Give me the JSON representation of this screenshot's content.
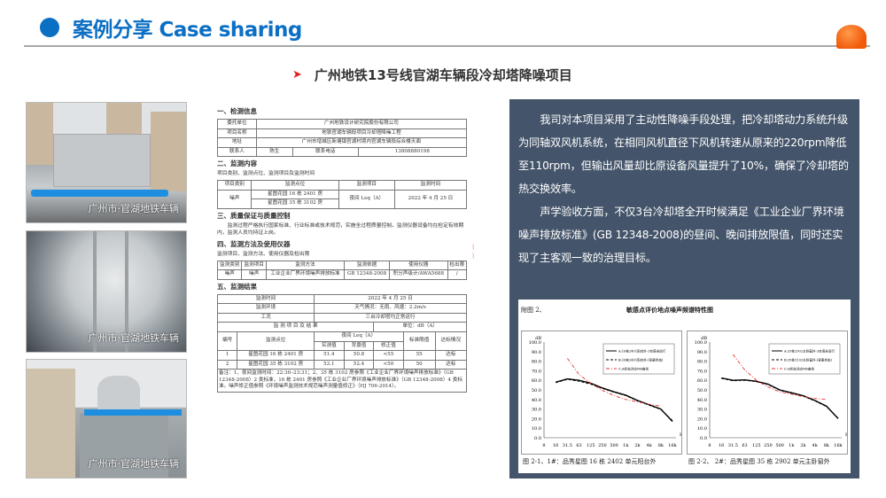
{
  "header": {
    "title": "案例分享 Case sharing",
    "subtitle": "广州地铁13号线官湖车辆段冷却塔降噪项目"
  },
  "photos": [
    {
      "caption": "广州市·官湖地铁车辆"
    },
    {
      "caption": "广州市·官湖地铁车辆"
    },
    {
      "caption": "广州市·官湖地铁车辆"
    }
  ],
  "doc": {
    "s1": "一、检测信息",
    "info": {
      "client_l": "委托单位",
      "client": "广州地铁设计研究院股份有限公司",
      "proj_l": "项目名称",
      "proj": "地铁官湖车辆段项目冷却塔降噪工程",
      "addr_l": "地址",
      "addr": "广州市增城区新塘镇官湖村境内官湖车辆段综合楼天面",
      "contact_l": "联系人",
      "contact": "陈生",
      "phone_l": "联系电话",
      "phone": "13808880198"
    },
    "s2": "二、监测内容",
    "s2_note": "项目类别、监测点位、监测项目及监测时间",
    "t2": {
      "h": [
        "项目类别",
        "监测点位",
        "监测项目",
        "监测时间"
      ],
      "cat": "噪声",
      "p1": "星图花园 16 栋 2401 房",
      "p2": "星图花园 35 栋 3102 房",
      "item": "夜间 Leq（A）",
      "time": "2022 年 4 月 25 日"
    },
    "s3": "三、质量保证与质量控制",
    "s3_p": "监测过程严格执行国家标准、行业标准或技术规范，实施全过程质量控制。监测仪器设备均在检定有效期内，监测人员均持证上岗。",
    "s4": "四、监测方法及使用仪器",
    "s4_note": "监测项目、监测方法、使用仪器及检出限",
    "t4": {
      "h": [
        "监测类别",
        "监测项目",
        "监测方法",
        "监测依据",
        "使用仪器",
        "检出限"
      ],
      "r": [
        "噪声",
        "噪声",
        "工业企业厂界环境噪声排放标准",
        "GB 12348-2008",
        "积分声级计/AWA5688",
        "/"
      ]
    },
    "s5": "五、监测结果",
    "t5": {
      "time_l": "监测时间",
      "time": "2022 年 4 月 25 日",
      "env_l": "监测环境",
      "env": "天气情况：无雨、风速：2.2m/s",
      "cond_l": "工况",
      "cond": "三台冷却塔均正常运行",
      "head": "监 测 项 目 及 结 果",
      "unit": "单位：dB（A）",
      "h_no": "编号",
      "h_pt": "监测点位",
      "h_leq": "夜间 Leq（A）",
      "h_m": "实测值",
      "h_b": "背景值",
      "h_c": "修正值",
      "h_lim": "标准限值",
      "h_ok": "达标情况",
      "rows": [
        [
          "1",
          "星图花园 16 栋 2401 房",
          "51.4",
          "50.8",
          "<55",
          "55",
          "达标"
        ],
        [
          "2",
          "星图花园 35 栋 3102 房",
          "53.1",
          "52.4",
          "<50",
          "50",
          "达标"
        ]
      ],
      "note": "备注：1、夜间监测时间：22:30–23:31；2、35 栋 3102 房参照《工业企业厂界环境噪声排放标准》（GB 12348-2008）2 类标准，16 栋 2401 房参照《工业企业厂界环境噪声排放标准》（GB 12348-2008）4 类标准。噪声修正值参照《环境噪声监测技术规范噪声测量值修正》（HJ 706-2014）。"
    }
  },
  "panel": {
    "p1": "我司对本项目采用了主动性降噪手段处理，把冷却塔动力系统升级为同轴双风机系统，在相同风机直径下风机转速从原来的220rpm降低至110rpm，但输出风量却比原设备风量提升了10%，确保了冷却塔的热交换效率。",
    "p2": "声学验收方面，不仅3台冷却塔全开时候满足《工业企业厂界环境噪声排放标准》(GB 12348-2008)的昼间、晚间排放限值，同时还实现了主客观一致的治理目标。"
  },
  "figure": {
    "label": "附图 2、",
    "title": "敏感点评价地点噪声频谱特性图"
  },
  "chart_data": [
    {
      "type": "line",
      "caption": "图 2-1、1#：品秀星图 16 栋 2402 单元阳台外",
      "ylabel": "dB",
      "xlabel": "Hz",
      "ylim": [
        0,
        100
      ],
      "yticks": [
        "0.0",
        "10.0",
        "20.0",
        "30.0",
        "40.0",
        "50.0",
        "60.0",
        "70.0",
        "80.0",
        "90.0",
        "100.0"
      ],
      "categories": [
        "8",
        "16",
        "31.5",
        "63",
        "125",
        "250",
        "500",
        "1k",
        "2k",
        "4k",
        "8k",
        "16k"
      ],
      "series": [
        {
          "name": "A:16栋2401阳台外-3台塔全运行",
          "color": "#000000",
          "style": "solid",
          "values": [
            null,
            58,
            61.5,
            60,
            57,
            52,
            48,
            44.5,
            39,
            34.5,
            30,
            17
          ]
        },
        {
          "name": "B:16栋2401阳台外-(背景状态)",
          "color": "#000000",
          "style": "dashed",
          "values": [
            null,
            57.5,
            61,
            59,
            56,
            51.5,
            47.5,
            44,
            38.5,
            34,
            29.5,
            18
          ]
        },
        {
          "name": "C:A状态对应NR曲线",
          "color": "#e83030",
          "style": "dashdot",
          "values": [
            null,
            null,
            83,
            66,
            57,
            49.5,
            44,
            40,
            37.5,
            35,
            33,
            null
          ]
        }
      ]
    },
    {
      "type": "line",
      "caption": "图 2-2、 2#：品秀星图 35 栋 2902 单元主卧窗外",
      "ylabel": "dB",
      "xlabel": "Hz",
      "ylim": [
        0,
        100
      ],
      "yticks": [
        "0.0",
        "10.0",
        "20.0",
        "30.0",
        "40.0",
        "50.0",
        "60.0",
        "70.0",
        "80.0",
        "90.0",
        "100.0"
      ],
      "categories": [
        "8",
        "16",
        "31.5",
        "63",
        "125",
        "250",
        "500",
        "1k",
        "2k",
        "4k",
        "8k",
        "16k"
      ],
      "series": [
        {
          "name": "A:35栋2902主卧窗外-3台塔全运行",
          "color": "#000000",
          "style": "solid",
          "values": [
            null,
            62.5,
            60,
            60.5,
            59,
            56,
            50,
            47,
            44,
            39,
            33,
            20
          ]
        },
        {
          "name": "B:35栋3102主卧窗外-(背景状态)",
          "color": "#000000",
          "style": "dashed",
          "values": [
            null,
            62,
            59.5,
            60,
            58.5,
            55.5,
            49.5,
            46.5,
            43.5,
            38.5,
            32.5,
            20.5
          ]
        },
        {
          "name": "C:A状态对应NR曲线",
          "color": "#e83030",
          "style": "dashdot",
          "values": [
            null,
            null,
            87,
            71,
            60,
            53,
            48,
            45.5,
            43,
            41,
            40,
            null
          ]
        }
      ]
    }
  ]
}
